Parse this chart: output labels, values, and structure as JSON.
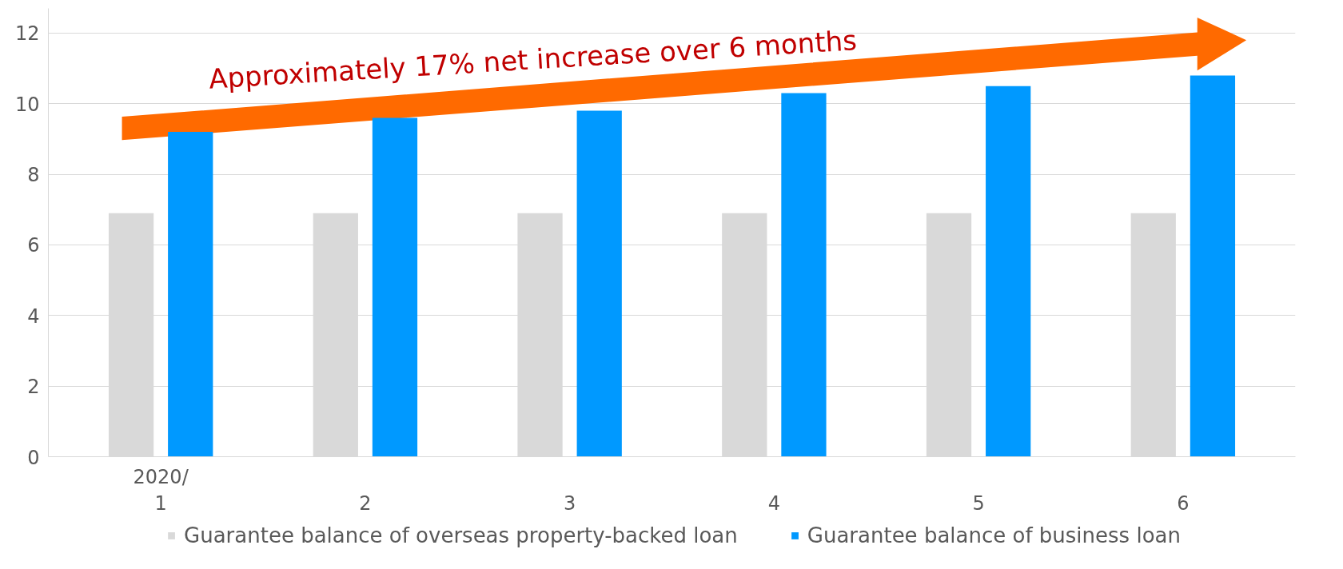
{
  "chart_data": {
    "type": "bar",
    "categories": [
      "2020/\n1",
      "2",
      "3",
      "4",
      "5",
      "6"
    ],
    "series": [
      {
        "name": "Guarantee balance of overseas property-backed loan",
        "color": "#d9d9d9",
        "values": [
          6.9,
          6.9,
          6.9,
          6.9,
          6.9,
          6.9
        ]
      },
      {
        "name": "Guarantee balance of business loan",
        "color": "#0099ff",
        "values": [
          9.2,
          9.6,
          9.8,
          10.3,
          10.5,
          10.8
        ]
      }
    ],
    "ylim": [
      0,
      12.7
    ],
    "yticks": [
      0,
      2,
      4,
      6,
      8,
      10,
      12
    ],
    "grid": "y",
    "legend": "bottom",
    "annotations": [
      "Approximately 17% net increase over 6 months"
    ]
  }
}
